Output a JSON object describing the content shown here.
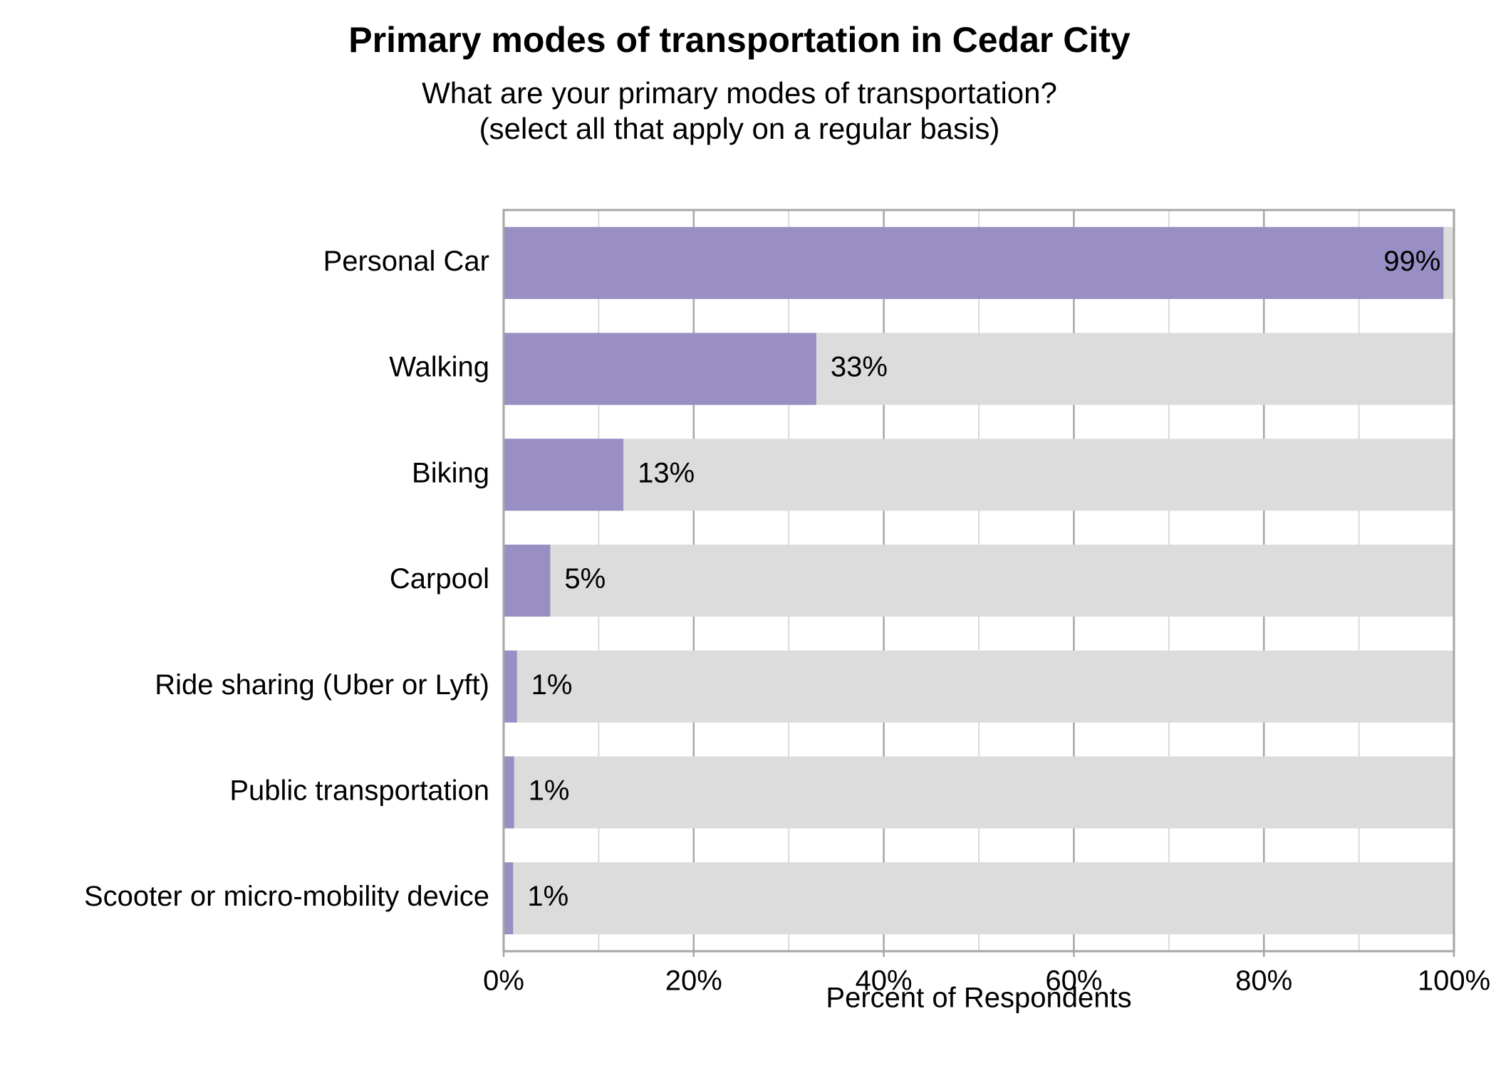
{
  "chart_data": {
    "type": "bar",
    "orientation": "horizontal",
    "title": "Primary modes of transportation in Cedar City",
    "subtitle": [
      "What are your primary modes of transportation?",
      "(select all that apply on a regular basis)"
    ],
    "xlabel": "Percent of Respondents",
    "categories": [
      "Personal Car",
      "Walking",
      "Biking",
      "Carpool",
      "Ride sharing (Uber or Lyft)",
      "Public transportation",
      "Scooter or micro-mobility device"
    ],
    "values": [
      98.9,
      32.9,
      12.6,
      4.9,
      1.4,
      1.1,
      1.0
    ],
    "value_labels": [
      "99%",
      "33%",
      "13%",
      "5%",
      "1%",
      "1%",
      "1%"
    ],
    "color": "#998fc4",
    "background_color": "#dcdcdc",
    "xlim": [
      0,
      100
    ],
    "xticks": [
      {
        "value": 0,
        "label": "0%"
      },
      {
        "value": 20,
        "label": "20%"
      },
      {
        "value": 40,
        "label": "40%"
      },
      {
        "value": 60,
        "label": "60%"
      },
      {
        "value": 80,
        "label": "80%"
      },
      {
        "value": 100,
        "label": "100%"
      }
    ],
    "minor_xticks": [
      10,
      30,
      50,
      70,
      90
    ],
    "grid": true
  }
}
